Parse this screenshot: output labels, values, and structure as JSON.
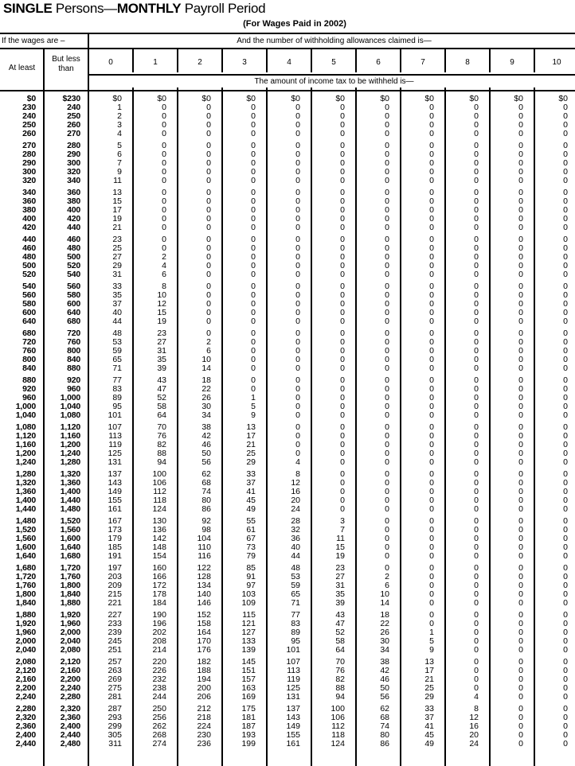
{
  "title": {
    "part1": "SINGLE",
    "part2": " Persons—",
    "part3": "MONTHLY",
    "part4": " Payroll Period"
  },
  "subtitle": "(For Wages Paid in 2002)",
  "header": {
    "wages_label": "If the wages are –",
    "at_least": "At least",
    "but_less_than": "But less than",
    "allowances_label": "And the number of withholding allowances claimed is—",
    "allowances": [
      "0",
      "1",
      "2",
      "3",
      "4",
      "5",
      "6",
      "7",
      "8",
      "9",
      "10"
    ],
    "amount_label": "The amount of income tax to be withheld is—"
  },
  "rows": [
    [
      "$0",
      "$230",
      "$0",
      "$0",
      "$0",
      "$0",
      "$0",
      "$0",
      "$0",
      "$0",
      "$0",
      "$0",
      "$0"
    ],
    [
      "230",
      "240",
      "1",
      "0",
      "0",
      "0",
      "0",
      "0",
      "0",
      "0",
      "0",
      "0",
      "0"
    ],
    [
      "240",
      "250",
      "2",
      "0",
      "0",
      "0",
      "0",
      "0",
      "0",
      "0",
      "0",
      "0",
      "0"
    ],
    [
      "250",
      "260",
      "3",
      "0",
      "0",
      "0",
      "0",
      "0",
      "0",
      "0",
      "0",
      "0",
      "0"
    ],
    [
      "260",
      "270",
      "4",
      "0",
      "0",
      "0",
      "0",
      "0",
      "0",
      "0",
      "0",
      "0",
      "0"
    ],
    [
      "270",
      "280",
      "5",
      "0",
      "0",
      "0",
      "0",
      "0",
      "0",
      "0",
      "0",
      "0",
      "0"
    ],
    [
      "280",
      "290",
      "6",
      "0",
      "0",
      "0",
      "0",
      "0",
      "0",
      "0",
      "0",
      "0",
      "0"
    ],
    [
      "290",
      "300",
      "7",
      "0",
      "0",
      "0",
      "0",
      "0",
      "0",
      "0",
      "0",
      "0",
      "0"
    ],
    [
      "300",
      "320",
      "9",
      "0",
      "0",
      "0",
      "0",
      "0",
      "0",
      "0",
      "0",
      "0",
      "0"
    ],
    [
      "320",
      "340",
      "11",
      "0",
      "0",
      "0",
      "0",
      "0",
      "0",
      "0",
      "0",
      "0",
      "0"
    ],
    [
      "340",
      "360",
      "13",
      "0",
      "0",
      "0",
      "0",
      "0",
      "0",
      "0",
      "0",
      "0",
      "0"
    ],
    [
      "360",
      "380",
      "15",
      "0",
      "0",
      "0",
      "0",
      "0",
      "0",
      "0",
      "0",
      "0",
      "0"
    ],
    [
      "380",
      "400",
      "17",
      "0",
      "0",
      "0",
      "0",
      "0",
      "0",
      "0",
      "0",
      "0",
      "0"
    ],
    [
      "400",
      "420",
      "19",
      "0",
      "0",
      "0",
      "0",
      "0",
      "0",
      "0",
      "0",
      "0",
      "0"
    ],
    [
      "420",
      "440",
      "21",
      "0",
      "0",
      "0",
      "0",
      "0",
      "0",
      "0",
      "0",
      "0",
      "0"
    ],
    [
      "440",
      "460",
      "23",
      "0",
      "0",
      "0",
      "0",
      "0",
      "0",
      "0",
      "0",
      "0",
      "0"
    ],
    [
      "460",
      "480",
      "25",
      "0",
      "0",
      "0",
      "0",
      "0",
      "0",
      "0",
      "0",
      "0",
      "0"
    ],
    [
      "480",
      "500",
      "27",
      "2",
      "0",
      "0",
      "0",
      "0",
      "0",
      "0",
      "0",
      "0",
      "0"
    ],
    [
      "500",
      "520",
      "29",
      "4",
      "0",
      "0",
      "0",
      "0",
      "0",
      "0",
      "0",
      "0",
      "0"
    ],
    [
      "520",
      "540",
      "31",
      "6",
      "0",
      "0",
      "0",
      "0",
      "0",
      "0",
      "0",
      "0",
      "0"
    ],
    [
      "540",
      "560",
      "33",
      "8",
      "0",
      "0",
      "0",
      "0",
      "0",
      "0",
      "0",
      "0",
      "0"
    ],
    [
      "560",
      "580",
      "35",
      "10",
      "0",
      "0",
      "0",
      "0",
      "0",
      "0",
      "0",
      "0",
      "0"
    ],
    [
      "580",
      "600",
      "37",
      "12",
      "0",
      "0",
      "0",
      "0",
      "0",
      "0",
      "0",
      "0",
      "0"
    ],
    [
      "600",
      "640",
      "40",
      "15",
      "0",
      "0",
      "0",
      "0",
      "0",
      "0",
      "0",
      "0",
      "0"
    ],
    [
      "640",
      "680",
      "44",
      "19",
      "0",
      "0",
      "0",
      "0",
      "0",
      "0",
      "0",
      "0",
      "0"
    ],
    [
      "680",
      "720",
      "48",
      "23",
      "0",
      "0",
      "0",
      "0",
      "0",
      "0",
      "0",
      "0",
      "0"
    ],
    [
      "720",
      "760",
      "53",
      "27",
      "2",
      "0",
      "0",
      "0",
      "0",
      "0",
      "0",
      "0",
      "0"
    ],
    [
      "760",
      "800",
      "59",
      "31",
      "6",
      "0",
      "0",
      "0",
      "0",
      "0",
      "0",
      "0",
      "0"
    ],
    [
      "800",
      "840",
      "65",
      "35",
      "10",
      "0",
      "0",
      "0",
      "0",
      "0",
      "0",
      "0",
      "0"
    ],
    [
      "840",
      "880",
      "71",
      "39",
      "14",
      "0",
      "0",
      "0",
      "0",
      "0",
      "0",
      "0",
      "0"
    ],
    [
      "880",
      "920",
      "77",
      "43",
      "18",
      "0",
      "0",
      "0",
      "0",
      "0",
      "0",
      "0",
      "0"
    ],
    [
      "920",
      "960",
      "83",
      "47",
      "22",
      "0",
      "0",
      "0",
      "0",
      "0",
      "0",
      "0",
      "0"
    ],
    [
      "960",
      "1,000",
      "89",
      "52",
      "26",
      "1",
      "0",
      "0",
      "0",
      "0",
      "0",
      "0",
      "0"
    ],
    [
      "1,000",
      "1,040",
      "95",
      "58",
      "30",
      "5",
      "0",
      "0",
      "0",
      "0",
      "0",
      "0",
      "0"
    ],
    [
      "1,040",
      "1,080",
      "101",
      "64",
      "34",
      "9",
      "0",
      "0",
      "0",
      "0",
      "0",
      "0",
      "0"
    ],
    [
      "1,080",
      "1,120",
      "107",
      "70",
      "38",
      "13",
      "0",
      "0",
      "0",
      "0",
      "0",
      "0",
      "0"
    ],
    [
      "1,120",
      "1,160",
      "113",
      "76",
      "42",
      "17",
      "0",
      "0",
      "0",
      "0",
      "0",
      "0",
      "0"
    ],
    [
      "1,160",
      "1,200",
      "119",
      "82",
      "46",
      "21",
      "0",
      "0",
      "0",
      "0",
      "0",
      "0",
      "0"
    ],
    [
      "1,200",
      "1,240",
      "125",
      "88",
      "50",
      "25",
      "0",
      "0",
      "0",
      "0",
      "0",
      "0",
      "0"
    ],
    [
      "1,240",
      "1,280",
      "131",
      "94",
      "56",
      "29",
      "4",
      "0",
      "0",
      "0",
      "0",
      "0",
      "0"
    ],
    [
      "1,280",
      "1,320",
      "137",
      "100",
      "62",
      "33",
      "8",
      "0",
      "0",
      "0",
      "0",
      "0",
      "0"
    ],
    [
      "1,320",
      "1,360",
      "143",
      "106",
      "68",
      "37",
      "12",
      "0",
      "0",
      "0",
      "0",
      "0",
      "0"
    ],
    [
      "1,360",
      "1,400",
      "149",
      "112",
      "74",
      "41",
      "16",
      "0",
      "0",
      "0",
      "0",
      "0",
      "0"
    ],
    [
      "1,400",
      "1,440",
      "155",
      "118",
      "80",
      "45",
      "20",
      "0",
      "0",
      "0",
      "0",
      "0",
      "0"
    ],
    [
      "1,440",
      "1,480",
      "161",
      "124",
      "86",
      "49",
      "24",
      "0",
      "0",
      "0",
      "0",
      "0",
      "0"
    ],
    [
      "1,480",
      "1,520",
      "167",
      "130",
      "92",
      "55",
      "28",
      "3",
      "0",
      "0",
      "0",
      "0",
      "0"
    ],
    [
      "1,520",
      "1,560",
      "173",
      "136",
      "98",
      "61",
      "32",
      "7",
      "0",
      "0",
      "0",
      "0",
      "0"
    ],
    [
      "1,560",
      "1,600",
      "179",
      "142",
      "104",
      "67",
      "36",
      "11",
      "0",
      "0",
      "0",
      "0",
      "0"
    ],
    [
      "1,600",
      "1,640",
      "185",
      "148",
      "110",
      "73",
      "40",
      "15",
      "0",
      "0",
      "0",
      "0",
      "0"
    ],
    [
      "1,640",
      "1,680",
      "191",
      "154",
      "116",
      "79",
      "44",
      "19",
      "0",
      "0",
      "0",
      "0",
      "0"
    ],
    [
      "1,680",
      "1,720",
      "197",
      "160",
      "122",
      "85",
      "48",
      "23",
      "0",
      "0",
      "0",
      "0",
      "0"
    ],
    [
      "1,720",
      "1,760",
      "203",
      "166",
      "128",
      "91",
      "53",
      "27",
      "2",
      "0",
      "0",
      "0",
      "0"
    ],
    [
      "1,760",
      "1,800",
      "209",
      "172",
      "134",
      "97",
      "59",
      "31",
      "6",
      "0",
      "0",
      "0",
      "0"
    ],
    [
      "1,800",
      "1,840",
      "215",
      "178",
      "140",
      "103",
      "65",
      "35",
      "10",
      "0",
      "0",
      "0",
      "0"
    ],
    [
      "1,840",
      "1,880",
      "221",
      "184",
      "146",
      "109",
      "71",
      "39",
      "14",
      "0",
      "0",
      "0",
      "0"
    ],
    [
      "1,880",
      "1,920",
      "227",
      "190",
      "152",
      "115",
      "77",
      "43",
      "18",
      "0",
      "0",
      "0",
      "0"
    ],
    [
      "1,920",
      "1,960",
      "233",
      "196",
      "158",
      "121",
      "83",
      "47",
      "22",
      "0",
      "0",
      "0",
      "0"
    ],
    [
      "1,960",
      "2,000",
      "239",
      "202",
      "164",
      "127",
      "89",
      "52",
      "26",
      "1",
      "0",
      "0",
      "0"
    ],
    [
      "2,000",
      "2,040",
      "245",
      "208",
      "170",
      "133",
      "95",
      "58",
      "30",
      "5",
      "0",
      "0",
      "0"
    ],
    [
      "2,040",
      "2,080",
      "251",
      "214",
      "176",
      "139",
      "101",
      "64",
      "34",
      "9",
      "0",
      "0",
      "0"
    ],
    [
      "2,080",
      "2,120",
      "257",
      "220",
      "182",
      "145",
      "107",
      "70",
      "38",
      "13",
      "0",
      "0",
      "0"
    ],
    [
      "2,120",
      "2,160",
      "263",
      "226",
      "188",
      "151",
      "113",
      "76",
      "42",
      "17",
      "0",
      "0",
      "0"
    ],
    [
      "2,160",
      "2,200",
      "269",
      "232",
      "194",
      "157",
      "119",
      "82",
      "46",
      "21",
      "0",
      "0",
      "0"
    ],
    [
      "2,200",
      "2,240",
      "275",
      "238",
      "200",
      "163",
      "125",
      "88",
      "50",
      "25",
      "0",
      "0",
      "0"
    ],
    [
      "2,240",
      "2,280",
      "281",
      "244",
      "206",
      "169",
      "131",
      "94",
      "56",
      "29",
      "4",
      "0",
      "0"
    ],
    [
      "2,280",
      "2,320",
      "287",
      "250",
      "212",
      "175",
      "137",
      "100",
      "62",
      "33",
      "8",
      "0",
      "0"
    ],
    [
      "2,320",
      "2,360",
      "293",
      "256",
      "218",
      "181",
      "143",
      "106",
      "68",
      "37",
      "12",
      "0",
      "0"
    ],
    [
      "2,360",
      "2,400",
      "299",
      "262",
      "224",
      "187",
      "149",
      "112",
      "74",
      "41",
      "16",
      "0",
      "0"
    ],
    [
      "2,400",
      "2,440",
      "305",
      "268",
      "230",
      "193",
      "155",
      "118",
      "80",
      "45",
      "20",
      "0",
      "0"
    ],
    [
      "2,440",
      "2,480",
      "311",
      "274",
      "236",
      "199",
      "161",
      "124",
      "86",
      "49",
      "24",
      "0",
      "0"
    ]
  ]
}
